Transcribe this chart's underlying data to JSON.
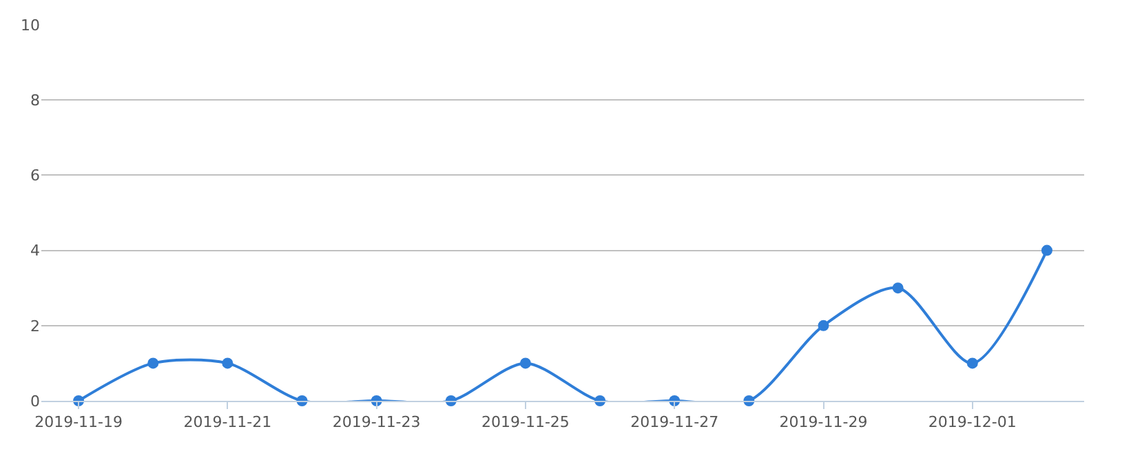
{
  "chart_data": {
    "type": "line",
    "x": [
      "2019-11-19",
      "2019-11-20",
      "2019-11-21",
      "2019-11-22",
      "2019-11-23",
      "2019-11-24",
      "2019-11-25",
      "2019-11-26",
      "2019-11-27",
      "2019-11-28",
      "2019-11-29",
      "2019-11-30",
      "2019-12-01",
      "2019-12-02"
    ],
    "series": [
      {
        "color": "#2f7ed8",
        "values": [
          0,
          1,
          1,
          0,
          0,
          0,
          1,
          0,
          0,
          0,
          2,
          3,
          1,
          4
        ]
      }
    ],
    "xlim": [
      "2019-11-18T12:00",
      "2019-12-02T12:00"
    ],
    "xticks": [
      "2019-11-19",
      "2019-11-21",
      "2019-11-23",
      "2019-11-25",
      "2019-11-27",
      "2019-11-29",
      "2019-12-01"
    ],
    "ylim": [
      0,
      10
    ],
    "yticks": [
      0,
      2,
      4,
      6,
      8,
      10
    ],
    "grid": "y",
    "legend": false,
    "marker": "circle",
    "line_style": "solid"
  }
}
